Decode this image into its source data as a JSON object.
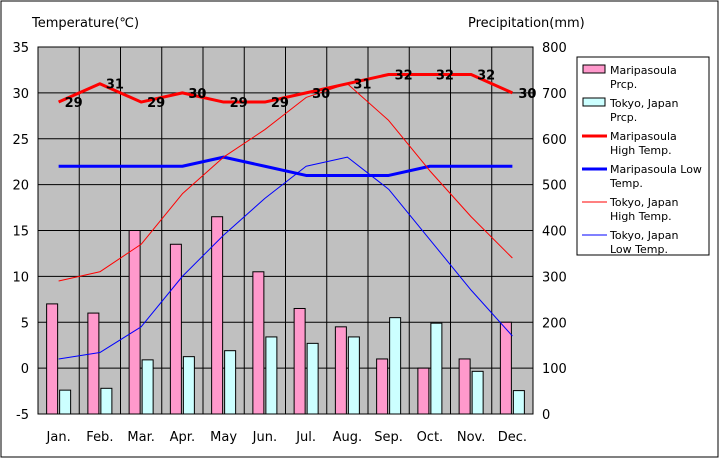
{
  "chart_data": {
    "type": "bar+line",
    "left_axis_title": "Temperature(℃)",
    "right_axis_title": "Precipitation(mm)",
    "categories": [
      "Jan.",
      "Feb.",
      "Mar.",
      "Apr.",
      "May",
      "Jun.",
      "Jul.",
      "Aug.",
      "Sep.",
      "Oct.",
      "Nov.",
      "Dec."
    ],
    "temp_ticks": [
      "35",
      "30",
      "25",
      "20",
      "15",
      "10",
      "5",
      "0",
      "-5"
    ],
    "prcp_ticks": [
      "800",
      "700",
      "600",
      "500",
      "400",
      "300",
      "200",
      "100",
      "0"
    ],
    "temp_range": [
      -5,
      35
    ],
    "prcp_range": [
      0,
      800
    ],
    "grid": true,
    "bar_series": [
      {
        "name": "Maripasoula Prcp.",
        "color": "#ff99cc",
        "values": [
          240,
          220,
          400,
          370,
          430,
          310,
          230,
          190,
          120,
          100,
          120,
          200
        ]
      },
      {
        "name": "Tokyo, Japan Prcp.",
        "color": "#ccffff",
        "values": [
          52,
          56,
          118,
          125,
          138,
          168,
          154,
          168,
          210,
          198,
          93,
          51
        ]
      }
    ],
    "line_series": [
      {
        "name": "Maripasoula High Temp.",
        "color": "#ff0000",
        "width": 3,
        "values": [
          29,
          31,
          29,
          30,
          29,
          29,
          30,
          31,
          32,
          32,
          32,
          30
        ],
        "labels": [
          "29",
          "31",
          "29",
          "30",
          "29",
          "29",
          "30",
          "31",
          "32",
          "32",
          "32",
          "30"
        ]
      },
      {
        "name": "Maripasoula Low Temp.",
        "color": "#0000ff",
        "width": 3,
        "values": [
          22,
          22,
          22,
          22,
          23,
          22,
          21,
          21,
          21,
          22,
          22,
          22
        ]
      },
      {
        "name": "Tokyo, Japan High Temp.",
        "color": "#ff0000",
        "width": 1,
        "values": [
          9.5,
          10.5,
          13.5,
          19,
          23,
          26,
          29.5,
          31,
          27,
          21.5,
          16.5,
          12
        ]
      },
      {
        "name": "Tokyo, Japan Low Temp.",
        "color": "#0000ff",
        "width": 1,
        "values": [
          1,
          1.7,
          4.5,
          10,
          14.5,
          18.5,
          22,
          23,
          19.5,
          14,
          8.5,
          3.5
        ]
      }
    ],
    "legend": {
      "position": "right",
      "entries": [
        {
          "lines": [
            "Maripasoula",
            "Prcp."
          ]
        },
        {
          "lines": [
            "Tokyo, Japan",
            "Prcp."
          ]
        },
        {
          "lines": [
            "Maripasoula",
            "High Temp."
          ]
        },
        {
          "lines": [
            "Maripasoula Low",
            "Temp."
          ]
        },
        {
          "lines": [
            "Tokyo, Japan",
            "High Temp."
          ]
        },
        {
          "lines": [
            "Tokyo, Japan",
            "Low Temp."
          ]
        }
      ]
    }
  }
}
